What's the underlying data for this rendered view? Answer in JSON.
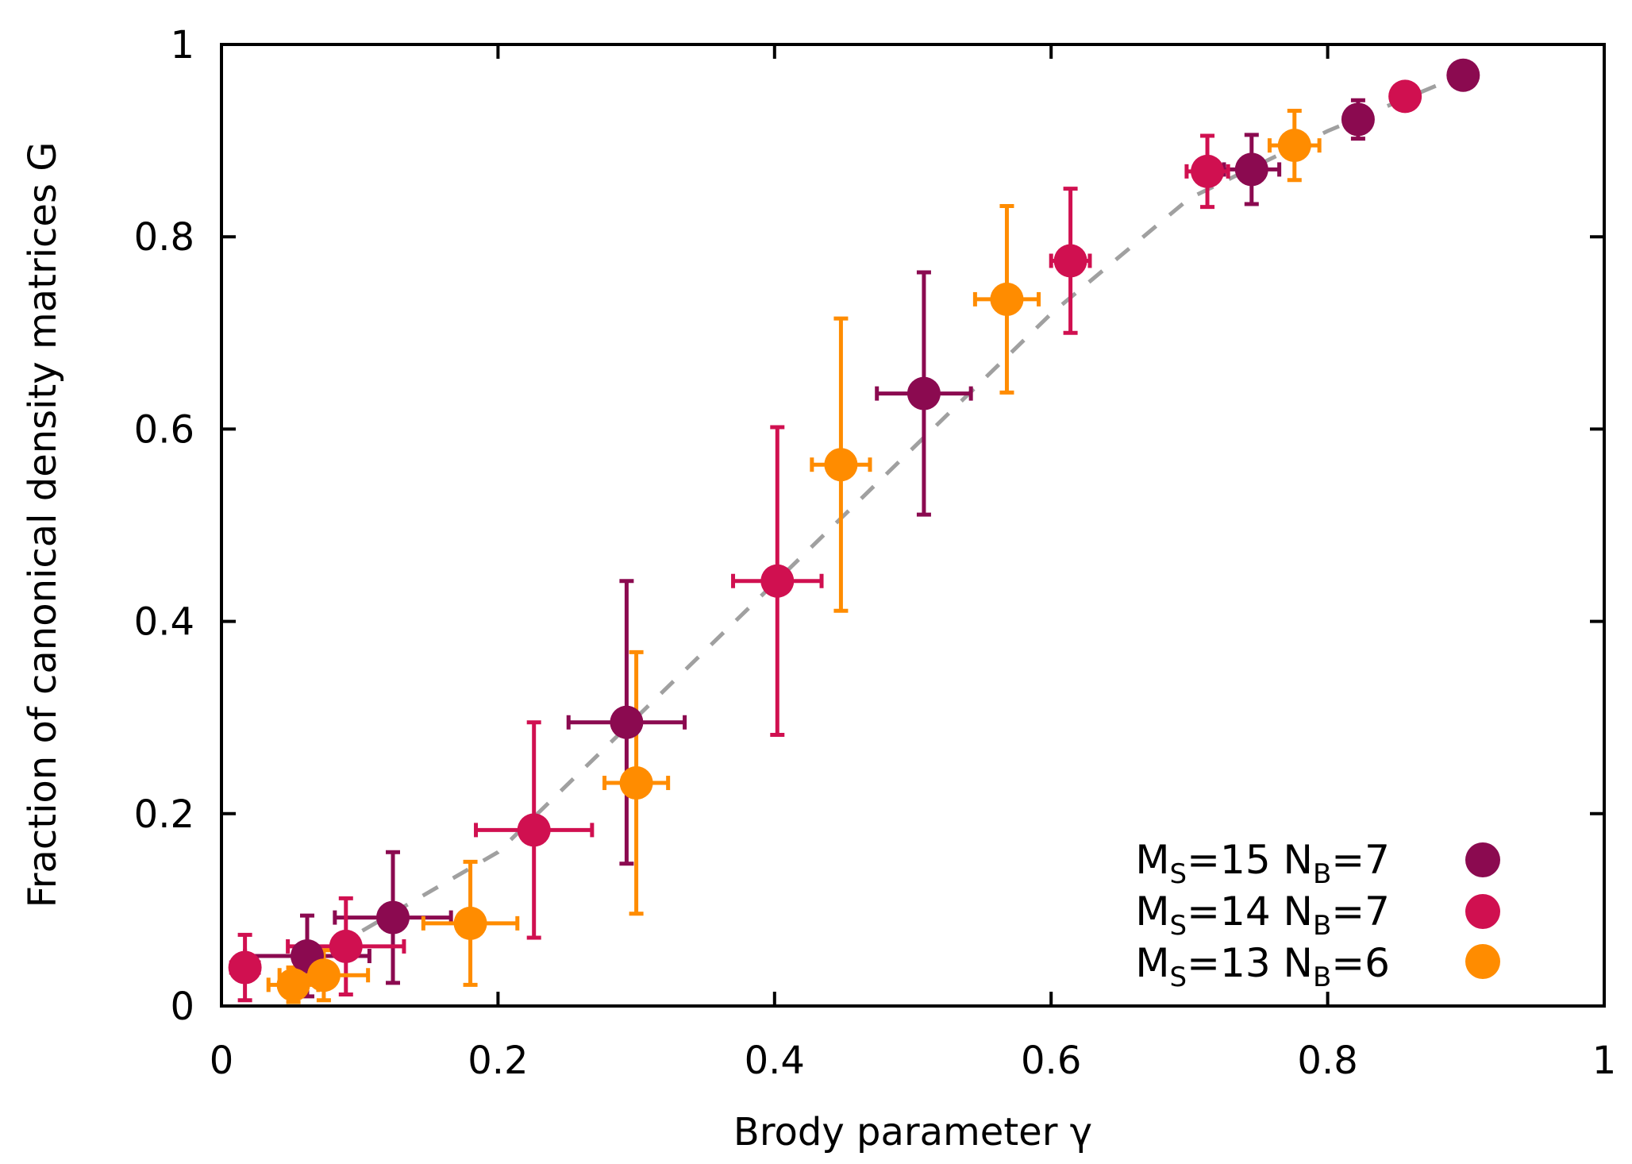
{
  "chart_data": {
    "type": "scatter",
    "title": "",
    "xlabel": "Brody parameter γ",
    "ylabel": "Fraction of canonical density matrices G",
    "xlim": [
      0,
      1
    ],
    "ylim": [
      0,
      1
    ],
    "xticks": [
      0,
      0.2,
      0.4,
      0.6,
      0.8,
      1
    ],
    "yticks": [
      0,
      0.2,
      0.4,
      0.6,
      0.8,
      1
    ],
    "xtick_labels": [
      "0",
      "0.2",
      "0.4",
      "0.6",
      "0.8",
      "1"
    ],
    "ytick_labels": [
      "0",
      "0.2",
      "0.4",
      "0.6",
      "0.8",
      "1"
    ],
    "legend_position": "bottom-right",
    "series": [
      {
        "name": "MS=15 NB=7",
        "label_M": "M",
        "label_Msub": "S",
        "label_Mval": "=15",
        "label_N": "N",
        "label_Nsub": "B",
        "label_Nval": "=7",
        "color": "#8b0a50",
        "points": [
          {
            "x": 0.062,
            "y": 0.052,
            "xerr": 0.045,
            "yerr": 0.042
          },
          {
            "x": 0.124,
            "y": 0.092,
            "xerr": 0.042,
            "yerr": 0.068
          },
          {
            "x": 0.293,
            "y": 0.295,
            "xerr": 0.042,
            "yerr": 0.147
          },
          {
            "x": 0.508,
            "y": 0.637,
            "xerr": 0.034,
            "yerr": 0.126
          },
          {
            "x": 0.745,
            "y": 0.87,
            "xerr": 0.02,
            "yerr": 0.036
          },
          {
            "x": 0.822,
            "y": 0.922,
            "xerr": 0.009,
            "yerr": 0.02
          },
          {
            "x": 0.898,
            "y": 0.968,
            "xerr": 0.004,
            "yerr": 0.006
          }
        ]
      },
      {
        "name": "MS=14 NB=7",
        "label_M": "M",
        "label_Msub": "S",
        "label_Mval": "=14",
        "label_N": "N",
        "label_Nsub": "B",
        "label_Nval": "=7",
        "color": "#d01050",
        "points": [
          {
            "x": 0.017,
            "y": 0.04,
            "xerr": 0.01,
            "yerr": 0.034
          },
          {
            "x": 0.09,
            "y": 0.062,
            "xerr": 0.042,
            "yerr": 0.05
          },
          {
            "x": 0.226,
            "y": 0.183,
            "xerr": 0.042,
            "yerr": 0.112
          },
          {
            "x": 0.402,
            "y": 0.442,
            "xerr": 0.032,
            "yerr": 0.16
          },
          {
            "x": 0.614,
            "y": 0.775,
            "xerr": 0.014,
            "yerr": 0.075
          },
          {
            "x": 0.713,
            "y": 0.868,
            "xerr": 0.015,
            "yerr": 0.037
          },
          {
            "x": 0.856,
            "y": 0.946,
            "xerr": 0.007,
            "yerr": 0.013
          }
        ]
      },
      {
        "name": "MS=13 NB=6",
        "label_M": "M",
        "label_Msub": "S",
        "label_Mval": "=13",
        "label_N": "N",
        "label_Nsub": "B",
        "label_Nval": "=6",
        "color": "#ff8c00",
        "points": [
          {
            "x": 0.052,
            "y": 0.022,
            "xerr": 0.018,
            "yerr": 0.018
          },
          {
            "x": 0.074,
            "y": 0.032,
            "xerr": 0.032,
            "yerr": 0.026
          },
          {
            "x": 0.18,
            "y": 0.086,
            "xerr": 0.034,
            "yerr": 0.064
          },
          {
            "x": 0.3,
            "y": 0.232,
            "xerr": 0.023,
            "yerr": 0.136
          },
          {
            "x": 0.448,
            "y": 0.563,
            "xerr": 0.021,
            "yerr": 0.152
          },
          {
            "x": 0.568,
            "y": 0.735,
            "xerr": 0.023,
            "yerr": 0.097
          },
          {
            "x": 0.776,
            "y": 0.895,
            "xerr": 0.018,
            "yerr": 0.036
          }
        ]
      }
    ],
    "fit_line": {
      "style": "dashed",
      "color": "#a0a0a0",
      "x": [
        0.08,
        0.2,
        0.3,
        0.4,
        0.5,
        0.6,
        0.7,
        0.8,
        0.9
      ],
      "y": [
        0.06,
        0.16,
        0.3,
        0.44,
        0.58,
        0.72,
        0.84,
        0.91,
        0.97
      ]
    }
  }
}
